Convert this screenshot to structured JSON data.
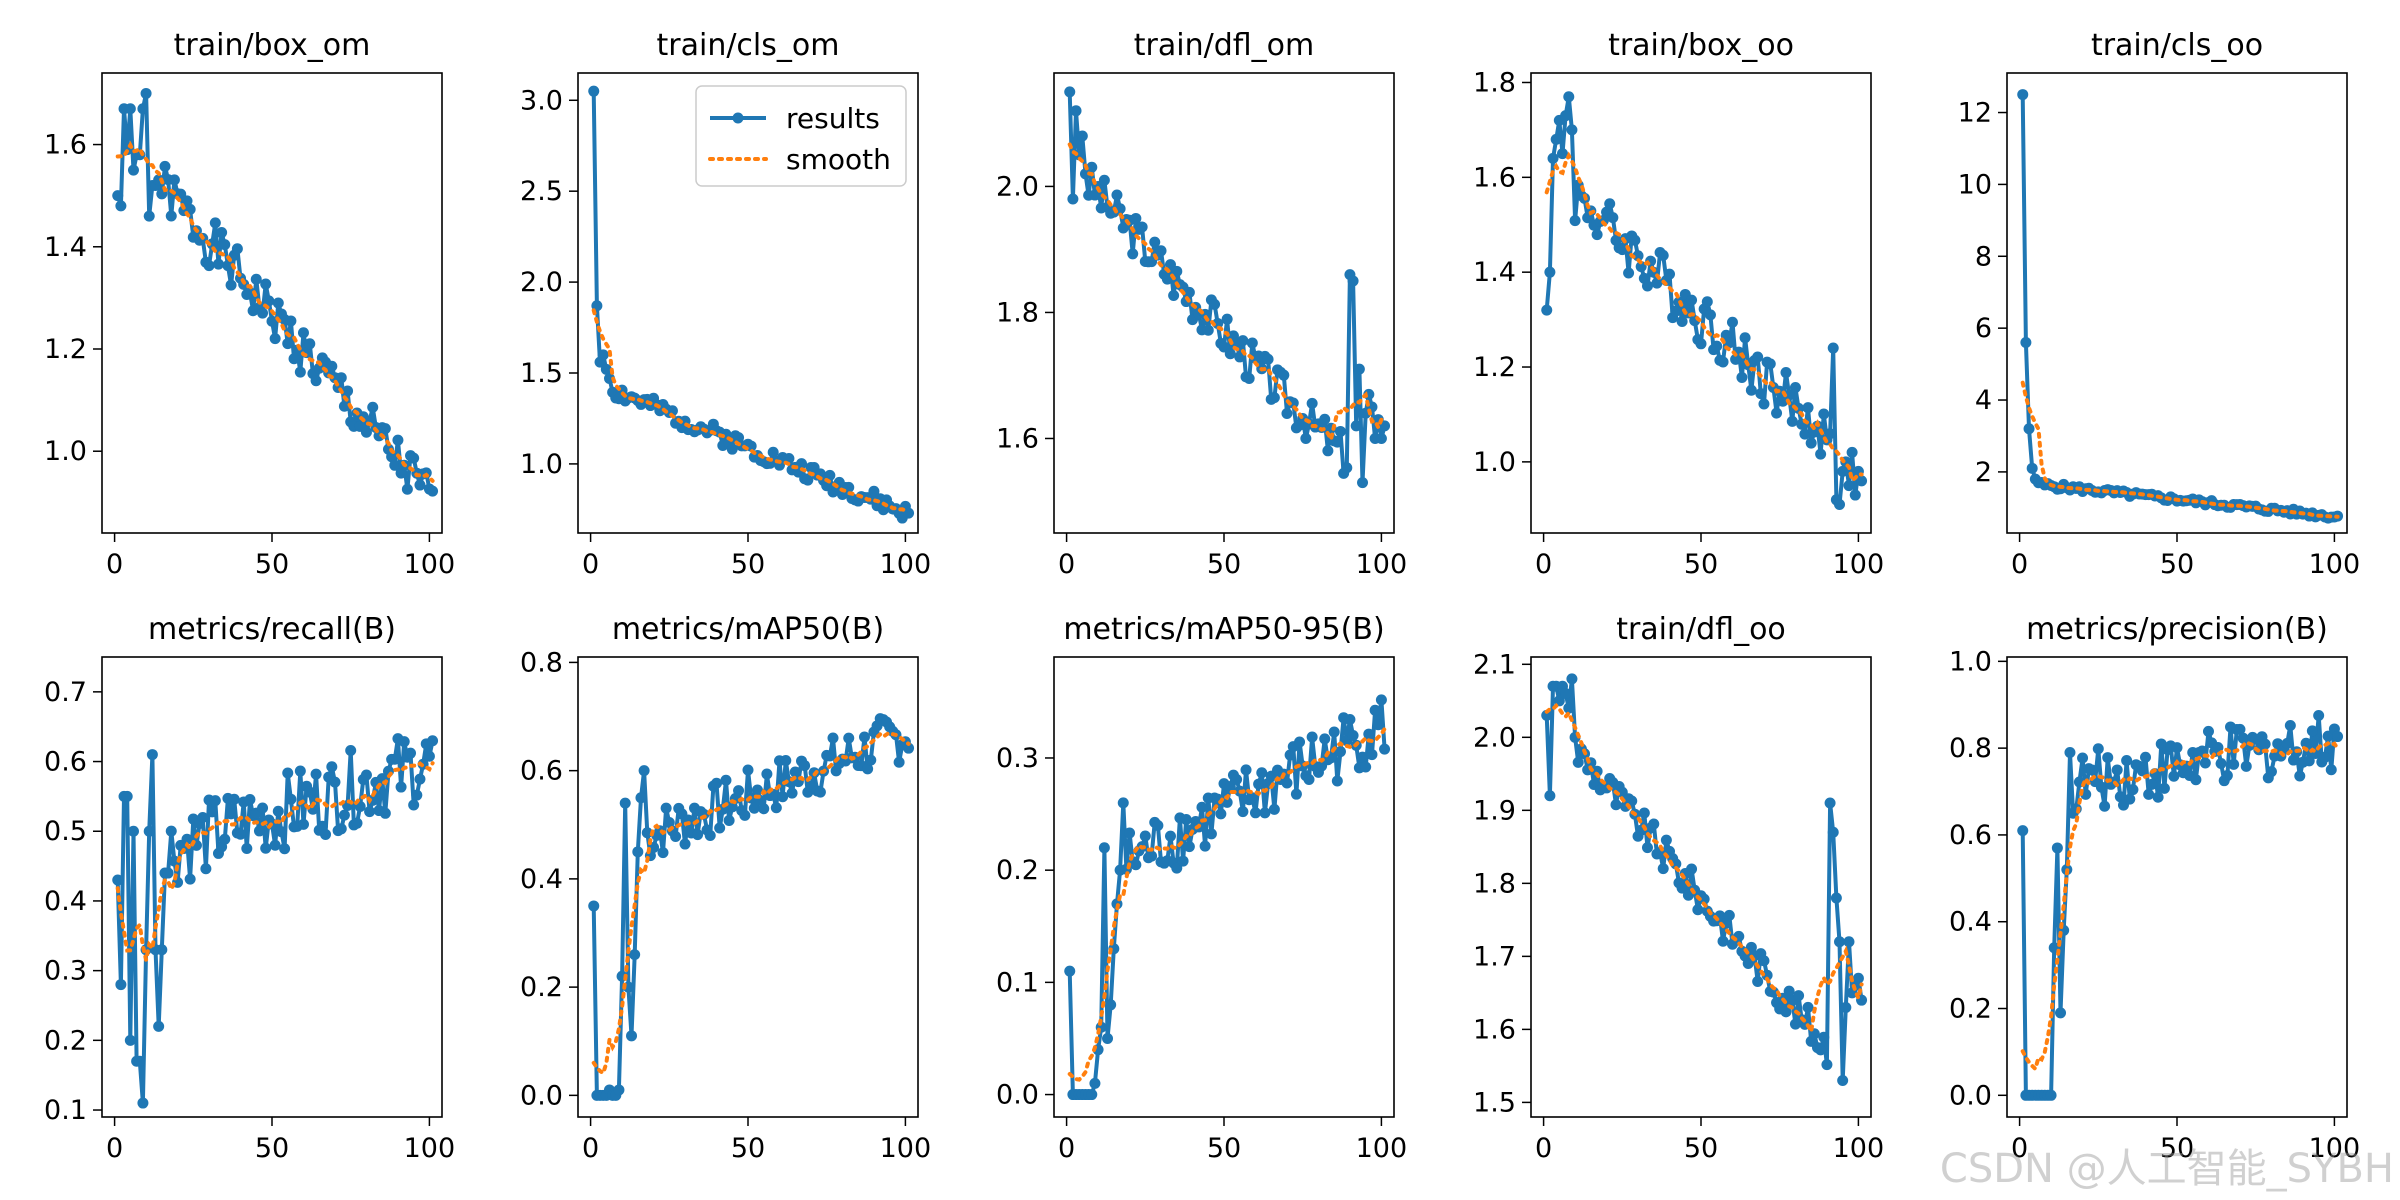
{
  "watermark": "CSDN @人工智能_SYBH",
  "legend": {
    "results": "results",
    "smooth": "smooth"
  },
  "colors": {
    "results": "#1f77b4",
    "smooth": "#ff7f0e"
  },
  "chart_data": [
    {
      "type": "line",
      "title": "train/box_om",
      "xlim": [
        -4,
        104
      ],
      "ylim": [
        0.84,
        1.74
      ],
      "xticks": [
        0,
        50,
        100
      ],
      "yticks": [
        1.0,
        1.2,
        1.4,
        1.6
      ],
      "yticklabels": [
        "1.0",
        "1.2",
        "1.4",
        "1.6"
      ],
      "series": [
        {
          "name": "results",
          "kind": "noisy_decay",
          "start": 1.62,
          "end": 0.9,
          "curve": 1.0,
          "noise": 0.05,
          "seed": 1,
          "min": 0.85,
          "max": 1.7,
          "values": [
            1.5,
            1.48,
            1.67,
            1.59,
            1.67,
            1.55,
            1.58,
            1.58,
            1.67,
            1.7,
            1.46,
            1.52,
            1.52
          ]
        }
      ]
    },
    {
      "type": "line",
      "title": "train/cls_om",
      "xlim": [
        -4,
        104
      ],
      "ylim": [
        0.62,
        3.15
      ],
      "xticks": [
        0,
        50,
        100
      ],
      "yticks": [
        1.0,
        1.5,
        2.0,
        2.5,
        3.0
      ],
      "yticklabels": [
        "1.0",
        "1.5",
        "2.0",
        "2.5",
        "3.0"
      ],
      "legend": "upper right",
      "series": [
        {
          "name": "results",
          "kind": "noisy_decay",
          "start": 1.45,
          "end": 0.72,
          "curve": 1.0,
          "noise": 0.05,
          "seed": 2,
          "min": 0.68,
          "max": 3.05,
          "values": [
            3.05,
            1.87,
            1.56,
            1.6,
            1.52,
            1.47
          ]
        }
      ]
    },
    {
      "type": "line",
      "title": "train/dfl_om",
      "xlim": [
        -4,
        104
      ],
      "ylim": [
        1.45,
        2.18
      ],
      "xticks": [
        0,
        50,
        100
      ],
      "yticks": [
        1.6,
        1.8,
        2.0
      ],
      "yticklabels": [
        "1.6",
        "1.8",
        "2.0"
      ],
      "series": [
        {
          "name": "results",
          "kind": "noisy_decay",
          "start": 2.04,
          "end": 1.52,
          "curve": 1.1,
          "noise": 0.035,
          "seed": 3,
          "min": 1.48,
          "max": 2.15,
          "values": [
            2.15,
            1.98,
            2.12,
            2.05,
            2.08,
            2.02
          ],
          "overrides": {
            "89": 1.86,
            "90": 1.85,
            "91": 1.62,
            "92": 1.71,
            "93": 1.53,
            "94": 1.64,
            "95": 1.67,
            "96": 1.65,
            "97": 1.6,
            "98": 1.63,
            "99": 1.6,
            "100": 1.62
          }
        }
      ]
    },
    {
      "type": "line",
      "title": "train/box_oo",
      "xlim": [
        -4,
        104
      ],
      "ylim": [
        0.85,
        1.82
      ],
      "xticks": [
        0,
        50,
        100
      ],
      "yticks": [
        1.0,
        1.2,
        1.4,
        1.6,
        1.8
      ],
      "yticklabels": [
        "1.0",
        "1.2",
        "1.4",
        "1.6",
        "1.8"
      ],
      "series": [
        {
          "name": "results",
          "kind": "noisy_decay",
          "start": 1.62,
          "end": 0.98,
          "curve": 1.0,
          "noise": 0.06,
          "seed": 4,
          "min": 0.9,
          "max": 1.77,
          "values": [
            1.32,
            1.4,
            1.64,
            1.68,
            1.72,
            1.65,
            1.73,
            1.77,
            1.7
          ],
          "overrides": {
            "91": 1.24,
            "92": 0.92,
            "93": 0.91,
            "94": 0.98,
            "95": 1.0,
            "96": 0.95,
            "97": 1.02,
            "98": 0.93,
            "99": 0.98,
            "100": 0.96
          }
        }
      ]
    },
    {
      "type": "line",
      "title": "train/cls_oo",
      "xlim": [
        -4,
        104
      ],
      "ylim": [
        0.3,
        13.1
      ],
      "xticks": [
        0,
        50,
        100
      ],
      "yticks": [
        2,
        4,
        6,
        8,
        10,
        12
      ],
      "yticklabels": [
        "2",
        "4",
        "6",
        "8",
        "10",
        "12"
      ],
      "series": [
        {
          "name": "results",
          "kind": "noisy_decay",
          "start": 1.7,
          "end": 0.75,
          "curve": 1.0,
          "noise": 0.08,
          "seed": 5,
          "min": 0.6,
          "max": 12.5,
          "values": [
            12.5,
            5.6,
            3.2,
            2.1,
            1.8,
            1.7
          ]
        }
      ]
    },
    {
      "type": "line",
      "title": "metrics/recall(B)",
      "xlim": [
        -4,
        104
      ],
      "ylim": [
        0.09,
        0.75
      ],
      "xticks": [
        0,
        50,
        100
      ],
      "yticks": [
        0.1,
        0.2,
        0.3,
        0.4,
        0.5,
        0.6,
        0.7
      ],
      "yticklabels": [
        "0.1",
        "0.2",
        "0.3",
        "0.4",
        "0.5",
        "0.6",
        "0.7"
      ],
      "series": [
        {
          "name": "results",
          "kind": "noisy_rise",
          "start": 0.45,
          "end": 0.6,
          "noise": 0.055,
          "seed": 6,
          "min": 0.1,
          "max": 0.72,
          "values": [
            0.43,
            0.28,
            0.55,
            0.55,
            0.2,
            0.5,
            0.17,
            0.17,
            0.11,
            0.33,
            0.5,
            0.61,
            0.33,
            0.22,
            0.33,
            0.44,
            0.44
          ]
        }
      ]
    },
    {
      "type": "line",
      "title": "metrics/mAP50(B)",
      "xlim": [
        -4,
        104
      ],
      "ylim": [
        -0.04,
        0.81
      ],
      "xticks": [
        0,
        50,
        100
      ],
      "yticks": [
        0.0,
        0.2,
        0.4,
        0.6,
        0.8
      ],
      "yticklabels": [
        "0.0",
        "0.2",
        "0.4",
        "0.6",
        "0.8"
      ],
      "series": [
        {
          "name": "results",
          "kind": "noisy_rise",
          "start": 0.44,
          "end": 0.67,
          "noise": 0.05,
          "seed": 7,
          "min": 0.0,
          "max": 0.77,
          "values": [
            0.35,
            0.0,
            0.0,
            0.0,
            0.0,
            0.01,
            0.0,
            0.0,
            0.01,
            0.22,
            0.54,
            0.2,
            0.11,
            0.26,
            0.45,
            0.55,
            0.6
          ]
        }
      ]
    },
    {
      "type": "line",
      "title": "metrics/mAP50-95(B)",
      "xlim": [
        -4,
        104
      ],
      "ylim": [
        -0.02,
        0.39
      ],
      "xticks": [
        0,
        50,
        100
      ],
      "yticks": [
        0.0,
        0.1,
        0.2,
        0.3
      ],
      "yticklabels": [
        "0.0",
        "0.1",
        "0.2",
        "0.3"
      ],
      "series": [
        {
          "name": "results",
          "kind": "noisy_rise",
          "start": 0.18,
          "end": 0.33,
          "noise": 0.03,
          "seed": 8,
          "min": 0.0,
          "max": 0.38,
          "values": [
            0.11,
            0.0,
            0.0,
            0.0,
            0.0,
            0.0,
            0.0,
            0.0,
            0.01,
            0.04,
            0.06,
            0.22,
            0.05,
            0.08,
            0.13,
            0.17,
            0.2,
            0.26
          ]
        }
      ]
    },
    {
      "type": "line",
      "title": "train/dfl_oo",
      "xlim": [
        -4,
        104
      ],
      "ylim": [
        1.48,
        2.11
      ],
      "xticks": [
        0,
        50,
        100
      ],
      "yticks": [
        1.5,
        1.6,
        1.7,
        1.8,
        1.9,
        2.0,
        2.1
      ],
      "yticklabels": [
        "1.5",
        "1.6",
        "1.7",
        "1.8",
        "1.9",
        "2.0",
        "2.1"
      ],
      "series": [
        {
          "name": "results",
          "kind": "noisy_decay",
          "start": 2.03,
          "end": 1.52,
          "curve": 1.0,
          "noise": 0.025,
          "seed": 9,
          "min": 1.5,
          "max": 2.08,
          "values": [
            2.03,
            1.92,
            2.07,
            2.07,
            2.05,
            2.07,
            2.06,
            2.04,
            2.08,
            2.0
          ],
          "overrides": {
            "90": 1.91,
            "91": 1.87,
            "92": 1.78,
            "93": 1.72,
            "94": 1.53,
            "95": 1.63,
            "96": 1.72,
            "97": 1.65,
            "98": 1.66,
            "99": 1.67,
            "100": 1.64
          }
        }
      ]
    },
    {
      "type": "line",
      "title": "metrics/precision(B)",
      "xlim": [
        -4,
        104
      ],
      "ylim": [
        -0.05,
        1.01
      ],
      "xticks": [
        0,
        50,
        100
      ],
      "yticks": [
        0.0,
        0.2,
        0.4,
        0.6,
        0.8,
        1.0
      ],
      "yticklabels": [
        "0.0",
        "0.2",
        "0.4",
        "0.6",
        "0.8",
        "1.0"
      ],
      "series": [
        {
          "name": "results",
          "kind": "noisy_rise",
          "start": 0.7,
          "end": 0.82,
          "noise": 0.07,
          "seed": 10,
          "min": 0.0,
          "max": 0.96,
          "values": [
            0.61,
            0.0,
            0.0,
            0.0,
            0.0,
            0.0,
            0.0,
            0.0,
            0.0,
            0.0,
            0.34,
            0.57,
            0.19,
            0.38,
            0.52,
            0.79,
            0.65
          ]
        }
      ]
    }
  ]
}
